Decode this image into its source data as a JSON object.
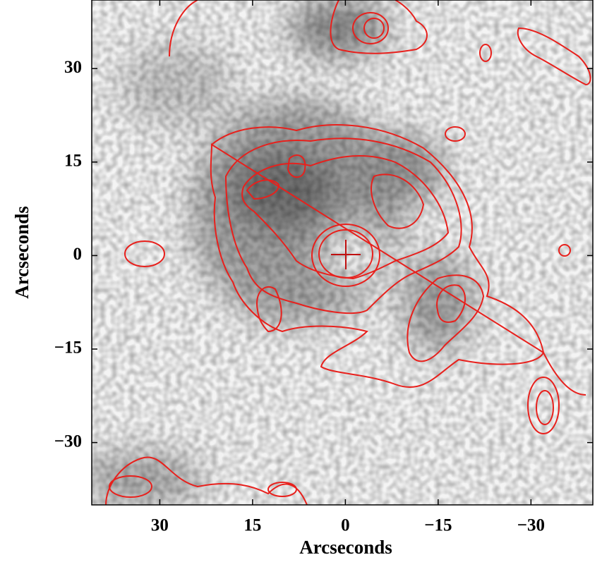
{
  "chart_data": {
    "type": "image",
    "xlabel": "Arcseconds",
    "ylabel": "Arcseconds",
    "xlim": [
      41,
      -40
    ],
    "ylim": [
      -40,
      41
    ],
    "xticks": [
      30,
      15,
      0,
      {
        "value": -15,
        "label": "−15"
      },
      {
        "value": -30,
        "label": "−30"
      }
    ],
    "yticks": [
      {
        "value": -30,
        "label": "−30"
      },
      {
        "value": -15,
        "label": "−15"
      },
      0,
      15,
      30
    ]
  }
}
